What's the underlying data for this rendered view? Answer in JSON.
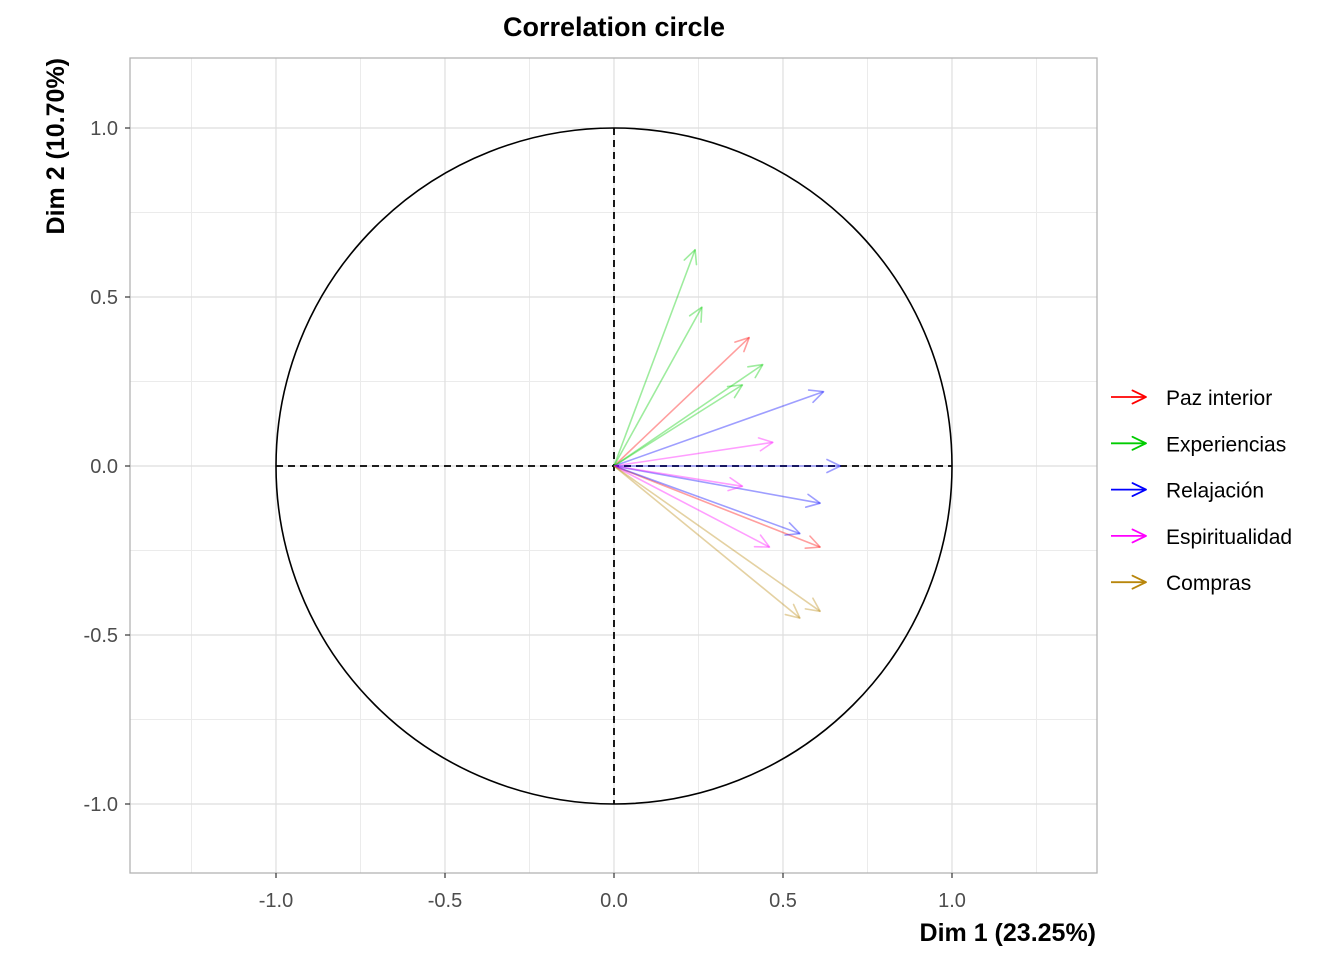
{
  "chart_data": {
    "type": "vector",
    "title": "Correlation circle",
    "xlabel": "Dim 1 (23.25%)",
    "ylabel": "Dim 2 (10.70%)",
    "xlim": [
      -1.43,
      1.43
    ],
    "ylim": [
      -1.21,
      1.21
    ],
    "x_ticks": [
      -1.0,
      -0.5,
      0.0,
      0.5,
      1.0
    ],
    "x_tick_labels": [
      "-1.0",
      "-0.5",
      "0.0",
      "0.5",
      "1.0"
    ],
    "y_ticks": [
      -1.0,
      -0.5,
      0.0,
      0.5,
      1.0
    ],
    "y_tick_labels": [
      "-1.0",
      "-0.5",
      "0.0",
      "0.5",
      "1.0"
    ],
    "grid": true,
    "unit_circle": true,
    "reference_lines": "dashed at x=0 and y=0",
    "legend_position": "right",
    "series": [
      {
        "name": "Paz interior",
        "color": "#ff0000",
        "vectors": [
          {
            "x": 0.4,
            "y": 0.38
          },
          {
            "x": 0.61,
            "y": -0.24
          }
        ]
      },
      {
        "name": "Experiencias",
        "color": "#00cc00",
        "vectors": [
          {
            "x": 0.24,
            "y": 0.64
          },
          {
            "x": 0.26,
            "y": 0.47
          },
          {
            "x": 0.44,
            "y": 0.3
          },
          {
            "x": 0.38,
            "y": 0.24
          }
        ]
      },
      {
        "name": "Relajación",
        "color": "#0000ff",
        "vectors": [
          {
            "x": 0.62,
            "y": 0.22
          },
          {
            "x": 0.67,
            "y": 0.0
          },
          {
            "x": 0.61,
            "y": -0.11
          },
          {
            "x": 0.55,
            "y": -0.2
          }
        ]
      },
      {
        "name": "Espiritualidad",
        "color": "#ff00ff",
        "vectors": [
          {
            "x": 0.47,
            "y": 0.07
          },
          {
            "x": 0.38,
            "y": -0.06
          },
          {
            "x": 0.46,
            "y": -0.24
          }
        ]
      },
      {
        "name": "Compras",
        "color": "#b8860b",
        "vectors": [
          {
            "x": 0.61,
            "y": -0.43
          },
          {
            "x": 0.55,
            "y": -0.45
          }
        ]
      }
    ]
  }
}
